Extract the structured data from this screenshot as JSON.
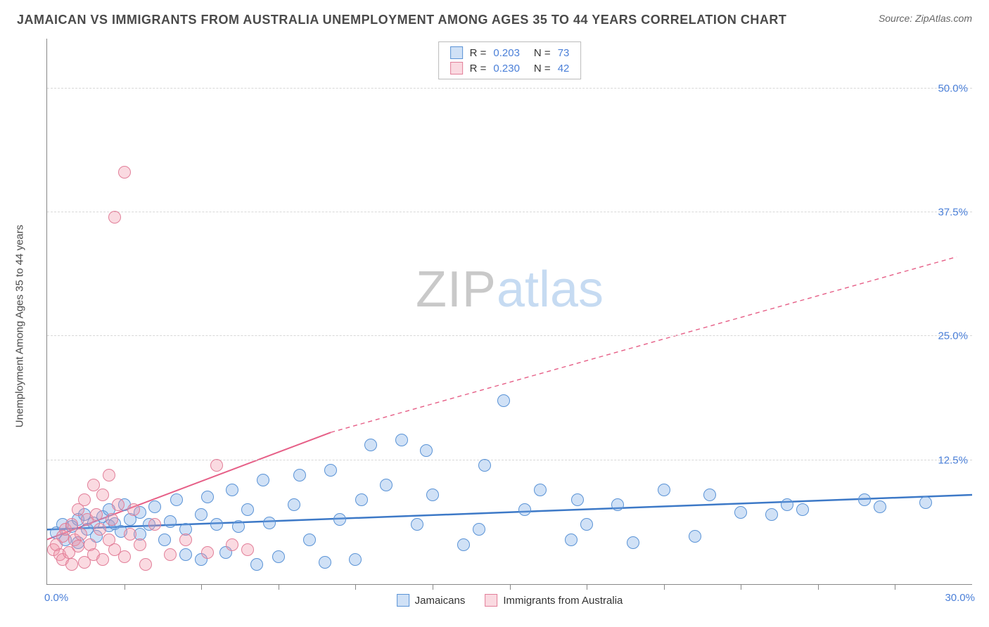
{
  "header": {
    "title": "JAMAICAN VS IMMIGRANTS FROM AUSTRALIA UNEMPLOYMENT AMONG AGES 35 TO 44 YEARS CORRELATION CHART",
    "source_prefix": "Source: ",
    "source_link": "ZipAtlas.com"
  },
  "watermark": {
    "zip": "ZIP",
    "atlas": "atlas"
  },
  "chart": {
    "type": "scatter",
    "y_axis_label": "Unemployment Among Ages 35 to 44 years",
    "xlim": [
      0,
      30
    ],
    "ylim": [
      0,
      55
    ],
    "x_origin_label": "0.0%",
    "x_max_label": "30.0%",
    "y_ticks": [
      {
        "v": 12.5,
        "label": "12.5%"
      },
      {
        "v": 25.0,
        "label": "25.0%"
      },
      {
        "v": 37.5,
        "label": "37.5%"
      },
      {
        "v": 50.0,
        "label": "50.0%"
      }
    ],
    "x_tick_step": 2.5,
    "background_color": "#ffffff",
    "grid_color": "#d8d8d8",
    "axis_color": "#888888",
    "tick_label_color": "#4a7fd8",
    "marker_radius": 9,
    "marker_stroke_width": 1.5,
    "series": [
      {
        "key": "jamaicans",
        "label": "Jamaicans",
        "fill": "rgba(120,170,230,0.35)",
        "stroke": "#5a93d6",
        "trend": {
          "x1": 0,
          "y1": 5.5,
          "x2": 30,
          "y2": 9.0,
          "color": "#3d79c7",
          "width": 2.5,
          "dash_after_x": 30
        },
        "R": "0.203",
        "N": "73",
        "points": [
          [
            0.3,
            5.2
          ],
          [
            0.5,
            6.0
          ],
          [
            0.6,
            4.5
          ],
          [
            0.8,
            5.8
          ],
          [
            1.0,
            6.5
          ],
          [
            1.0,
            4.2
          ],
          [
            1.2,
            7.0
          ],
          [
            1.3,
            5.5
          ],
          [
            1.5,
            6.2
          ],
          [
            1.6,
            4.8
          ],
          [
            1.8,
            6.8
          ],
          [
            2.0,
            5.9
          ],
          [
            2.0,
            7.5
          ],
          [
            2.2,
            6.1
          ],
          [
            2.4,
            5.3
          ],
          [
            2.5,
            8.0
          ],
          [
            2.7,
            6.5
          ],
          [
            3.0,
            7.2
          ],
          [
            3.0,
            5.0
          ],
          [
            3.3,
            6.0
          ],
          [
            3.5,
            7.8
          ],
          [
            3.8,
            4.5
          ],
          [
            4.0,
            6.3
          ],
          [
            4.2,
            8.5
          ],
          [
            4.5,
            5.5
          ],
          [
            4.5,
            3.0
          ],
          [
            5.0,
            7.0
          ],
          [
            5.0,
            2.5
          ],
          [
            5.2,
            8.8
          ],
          [
            5.5,
            6.0
          ],
          [
            5.8,
            3.2
          ],
          [
            6.0,
            9.5
          ],
          [
            6.2,
            5.8
          ],
          [
            6.5,
            7.5
          ],
          [
            6.8,
            2.0
          ],
          [
            7.0,
            10.5
          ],
          [
            7.2,
            6.2
          ],
          [
            7.5,
            2.8
          ],
          [
            8.0,
            8.0
          ],
          [
            8.2,
            11.0
          ],
          [
            8.5,
            4.5
          ],
          [
            9.0,
            2.2
          ],
          [
            9.2,
            11.5
          ],
          [
            9.5,
            6.5
          ],
          [
            10.0,
            2.5
          ],
          [
            10.2,
            8.5
          ],
          [
            10.5,
            14.0
          ],
          [
            11.0,
            10.0
          ],
          [
            11.5,
            14.5
          ],
          [
            12.0,
            6.0
          ],
          [
            12.3,
            13.5
          ],
          [
            12.5,
            9.0
          ],
          [
            13.5,
            4.0
          ],
          [
            14.0,
            5.5
          ],
          [
            14.2,
            12.0
          ],
          [
            14.8,
            18.5
          ],
          [
            15.5,
            7.5
          ],
          [
            16.0,
            9.5
          ],
          [
            17.0,
            4.5
          ],
          [
            17.2,
            8.5
          ],
          [
            17.5,
            6.0
          ],
          [
            18.5,
            8.0
          ],
          [
            19.0,
            4.2
          ],
          [
            20.0,
            9.5
          ],
          [
            21.0,
            4.8
          ],
          [
            21.5,
            9.0
          ],
          [
            22.5,
            7.2
          ],
          [
            23.5,
            7.0
          ],
          [
            24.0,
            8.0
          ],
          [
            24.5,
            7.5
          ],
          [
            26.5,
            8.5
          ],
          [
            27.0,
            7.8
          ],
          [
            28.5,
            8.2
          ]
        ]
      },
      {
        "key": "aus",
        "label": "Immigrants from Australia",
        "fill": "rgba(240,150,170,0.35)",
        "stroke": "#e27f99",
        "trend": {
          "x1": 0,
          "y1": 4.5,
          "x2": 9.2,
          "y2": 15.3,
          "color": "#e65f87",
          "width": 2,
          "dash_after_x": 9.2,
          "dash_x2": 29.5,
          "dash_y2": 33.0
        },
        "R": "0.230",
        "N": "42",
        "points": [
          [
            0.2,
            3.5
          ],
          [
            0.3,
            4.0
          ],
          [
            0.4,
            3.0
          ],
          [
            0.5,
            4.8
          ],
          [
            0.5,
            2.5
          ],
          [
            0.6,
            5.5
          ],
          [
            0.7,
            3.2
          ],
          [
            0.8,
            6.0
          ],
          [
            0.8,
            2.0
          ],
          [
            0.9,
            4.5
          ],
          [
            1.0,
            7.5
          ],
          [
            1.0,
            3.8
          ],
          [
            1.1,
            5.0
          ],
          [
            1.2,
            2.2
          ],
          [
            1.2,
            8.5
          ],
          [
            1.3,
            6.5
          ],
          [
            1.4,
            4.0
          ],
          [
            1.5,
            10.0
          ],
          [
            1.5,
            3.0
          ],
          [
            1.6,
            7.0
          ],
          [
            1.7,
            5.5
          ],
          [
            1.8,
            2.5
          ],
          [
            1.8,
            9.0
          ],
          [
            2.0,
            11.0
          ],
          [
            2.0,
            4.5
          ],
          [
            2.1,
            6.5
          ],
          [
            2.2,
            3.5
          ],
          [
            2.3,
            8.0
          ],
          [
            2.5,
            2.8
          ],
          [
            2.7,
            5.0
          ],
          [
            2.8,
            7.5
          ],
          [
            3.0,
            4.0
          ],
          [
            3.2,
            2.0
          ],
          [
            3.5,
            6.0
          ],
          [
            4.0,
            3.0
          ],
          [
            4.5,
            4.5
          ],
          [
            5.2,
            3.2
          ],
          [
            5.5,
            12.0
          ],
          [
            6.0,
            4.0
          ],
          [
            6.5,
            3.5
          ],
          [
            2.2,
            37.0
          ],
          [
            2.5,
            41.5
          ]
        ]
      }
    ],
    "bottom_legend": [
      {
        "label": "Jamaicans",
        "fill": "rgba(120,170,230,0.35)",
        "stroke": "#5a93d6"
      },
      {
        "label": "Immigrants from Australia",
        "fill": "rgba(240,150,170,0.35)",
        "stroke": "#e27f99"
      }
    ]
  }
}
